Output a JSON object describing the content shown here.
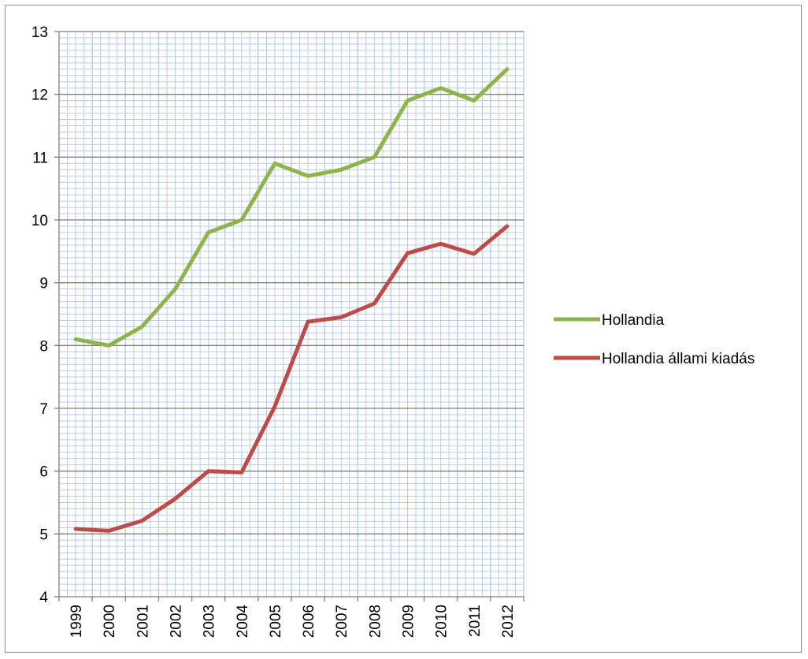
{
  "chart_data": {
    "type": "line",
    "title": "",
    "xlabel": "",
    "ylabel": "",
    "x": [
      "1999",
      "2000",
      "2001",
      "2002",
      "2003",
      "2004",
      "2005",
      "2006",
      "2007",
      "2008",
      "2009",
      "2010",
      "2011",
      "2012"
    ],
    "ylim": [
      4,
      13
    ],
    "yticks": [
      "4",
      "5",
      "6",
      "7",
      "8",
      "9",
      "10",
      "11",
      "12",
      "13"
    ],
    "grid": true,
    "legend_position": "right",
    "series": [
      {
        "name": "Hollandia",
        "color": "#8db54c",
        "values": [
          8.1,
          8.0,
          8.3,
          8.9,
          9.8,
          10.0,
          10.9,
          10.7,
          10.8,
          11.0,
          11.9,
          12.1,
          11.9,
          12.4
        ]
      },
      {
        "name": "Hollandia állami kiadás",
        "color": "#be4b48",
        "values": [
          5.08,
          5.05,
          5.21,
          5.56,
          6.0,
          5.98,
          7.03,
          8.38,
          8.45,
          8.67,
          9.47,
          9.62,
          9.46,
          9.9
        ]
      }
    ],
    "colors": {
      "minor_grid": "#b8cce4",
      "major_grid": "#7f7f7f",
      "axis": "#7f7f7f"
    }
  }
}
